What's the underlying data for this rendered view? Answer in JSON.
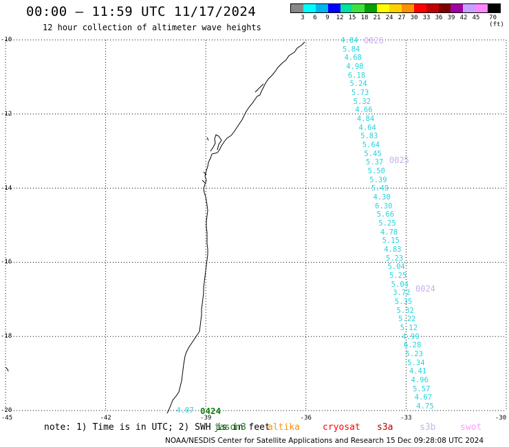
{
  "title": "00:00 – 11:59 UTC 11/17/2024",
  "subtitle": "12 hour collection of altimeter wave heights",
  "legend": {
    "colors": [
      "#888888",
      "#00ffff",
      "#00b4f0",
      "#0000ff",
      "#00e0a0",
      "#40e040",
      "#00a000",
      "#ffff00",
      "#ffd000",
      "#ff9000",
      "#ff0000",
      "#c00000",
      "#800000",
      "#a000a0",
      "#c8a0ff",
      "#ff88ff",
      "#000000"
    ],
    "labels": [
      "3",
      "6",
      "9",
      "12",
      "15",
      "18",
      "21",
      "24",
      "27",
      "30",
      "33",
      "36",
      "39",
      "42",
      "45",
      "70 (ft)"
    ]
  },
  "map": {
    "lat_ticks": [
      "-10",
      "-12",
      "-14",
      "-16",
      "-18",
      "-20"
    ],
    "lon_ticks": [
      "-45",
      "-42",
      "-39",
      "-36",
      "-33",
      "-30"
    ],
    "lat_range": [
      -20,
      -10
    ],
    "lon_range": [
      -45,
      -30
    ],
    "lat_tick_values": [
      -10,
      -12,
      -14,
      -16,
      -18,
      -20
    ],
    "lon_tick_values": [
      -45,
      -42,
      -39,
      -36,
      -33,
      -30
    ],
    "grid": "dotted"
  },
  "track": {
    "color": "#22d3de",
    "values": [
      "4.84",
      "5.84",
      "4.68",
      "4.98",
      "6.18",
      "5.24",
      "5.73",
      "5.32",
      "4.66",
      "4.84",
      "4.64",
      "5.83",
      "5.64",
      "5.45",
      "5.37",
      "5.50",
      "5.39",
      "5.49",
      "4.30",
      "6.30",
      "5.66",
      "5.25",
      "4.78",
      "5.15",
      "4.83",
      "5.23",
      "5.04",
      "5.25",
      "5.04",
      "3.72",
      "5.35",
      "5.32",
      "5.22",
      "5.12",
      "4.99",
      "6.28",
      "5.23",
      "5.34",
      "4.41",
      "4.96",
      "5.57",
      "4.67",
      "4.75"
    ]
  },
  "pass_labels": [
    {
      "text": "0026",
      "color": "#c7aff0"
    },
    {
      "text": "0025",
      "color": "#c7aff0"
    },
    {
      "text": "0024",
      "color": "#c7aff0"
    }
  ],
  "green_pass": {
    "value": "4.07",
    "label": "0424",
    "color": "#0f7f0f"
  },
  "note": "note: 1) Time is in UTC; 2) SWH is in feet",
  "satellites": [
    {
      "name": "jason3",
      "color": "#0f7f0f"
    },
    {
      "name": "altika",
      "color": "#ff9000"
    },
    {
      "name": "cryosat",
      "color": "#ff0000"
    },
    {
      "name": "s3a",
      "color": "#b00000"
    },
    {
      "name": "s3b",
      "color": "#c7aff0"
    },
    {
      "name": "swot",
      "color": "#ff99ff"
    }
  ],
  "credit": "NOAA/NESDIS Center for Satellite Applications and Research   15 Dec 09:28:08 UTC 2024"
}
